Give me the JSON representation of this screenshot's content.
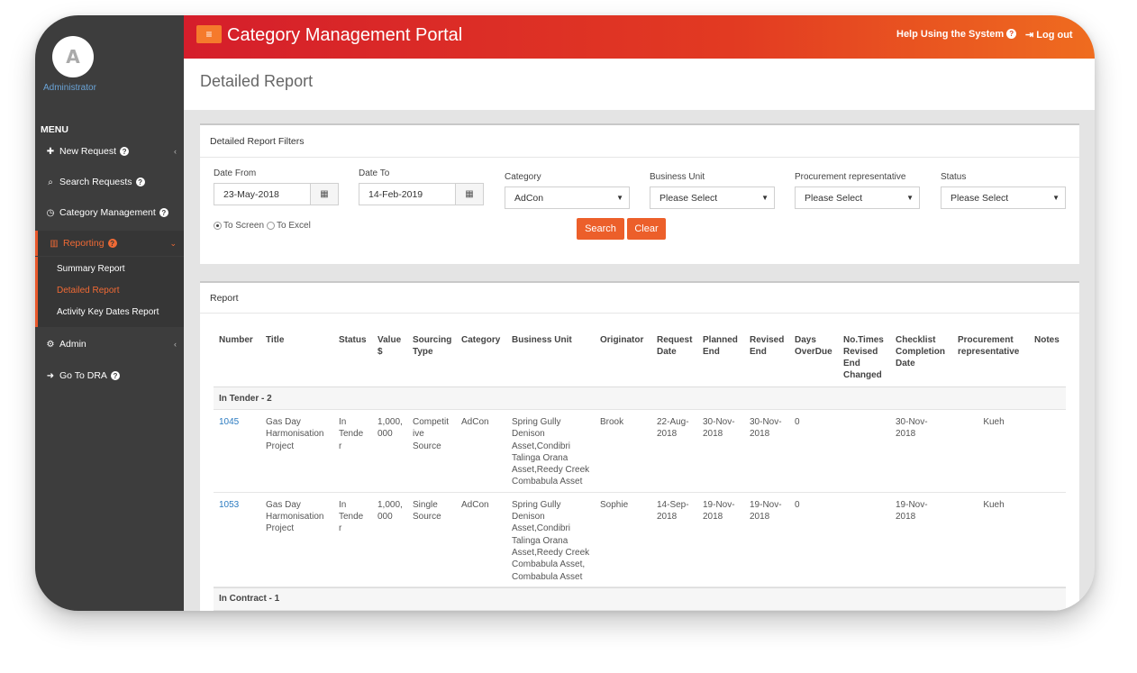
{
  "user": {
    "initial": "A",
    "name": "Administrator"
  },
  "sidebar": {
    "menu_heading": "MENU",
    "items": [
      {
        "label": "New Request",
        "icon": "plus-icon"
      },
      {
        "label": "Search Requests",
        "icon": "search-icon"
      },
      {
        "label": "Category Management",
        "icon": "clock-icon"
      },
      {
        "label": "Reporting",
        "icon": "bar-chart-icon"
      },
      {
        "label": "Admin",
        "icon": "gears-icon"
      },
      {
        "label": "Go To DRA",
        "icon": "arrow-circle-icon"
      }
    ],
    "reporting_sub": [
      "Summary Report",
      "Detailed Report",
      "Activity Key Dates Report"
    ]
  },
  "header": {
    "title": "Category Management Portal",
    "help": "Help Using the System",
    "logout": "Log out"
  },
  "page": {
    "title": "Detailed Report"
  },
  "filters": {
    "title": "Detailed Report Filters",
    "date_from": {
      "label": "Date From",
      "value": "23-May-2018"
    },
    "date_to": {
      "label": "Date To",
      "value": "14-Feb-2019"
    },
    "category": {
      "label": "Category",
      "value": "AdCon"
    },
    "business_unit": {
      "label": "Business Unit",
      "value": "Please Select"
    },
    "procurement_rep": {
      "label": "Procurement representative",
      "value": "Please Select"
    },
    "status": {
      "label": "Status",
      "value": "Please Select"
    },
    "output": {
      "to_screen": "To Screen",
      "to_excel": "To Excel",
      "selected": "to_screen"
    },
    "search_label": "Search",
    "clear_label": "Clear"
  },
  "report": {
    "title": "Report",
    "columns": [
      [
        "Number"
      ],
      [
        "Title"
      ],
      [
        "Status"
      ],
      [
        "Value",
        "$"
      ],
      [
        "Sourcing",
        "Type"
      ],
      [
        "Category"
      ],
      [
        "Business Unit"
      ],
      [
        "Originator"
      ],
      [
        "Request",
        "Date"
      ],
      [
        "Planned",
        "End"
      ],
      [
        "Revised",
        "End"
      ],
      [
        "Days",
        "OverDue"
      ],
      [
        "No.Times",
        "Revised",
        "End",
        "Changed"
      ],
      [
        "Checklist",
        "Completion",
        "Date"
      ],
      [
        "Procurement",
        "representative"
      ],
      [
        "Notes"
      ]
    ],
    "groups": [
      {
        "label": "In Tender - 2",
        "rows": [
          {
            "number": "1045",
            "title": [
              "Gas Day",
              "Harmonisation",
              "Project"
            ],
            "status": [
              "In",
              "Tende",
              "r"
            ],
            "value": [
              "1,000,",
              "000"
            ],
            "sourcing": [
              "Competit",
              "ive",
              "Source"
            ],
            "category": "AdCon",
            "business_unit": [
              "Spring Gully",
              "Denison",
              "Asset,Condibri",
              "Talinga Orana",
              "Asset,Reedy Creek",
              "Combabula Asset"
            ],
            "originator": "Brook",
            "request_date": [
              "22-Aug-",
              "2018"
            ],
            "planned_end": [
              "30-Nov-",
              "2018"
            ],
            "revised_end": [
              "30-Nov-",
              "2018"
            ],
            "days_overdue": "0",
            "times_revised": "",
            "checklist_date": [
              "30-Nov-",
              "2018"
            ],
            "procurement_rep": "Kueh",
            "notes": ""
          },
          {
            "number": "1053",
            "title": [
              "Gas Day",
              "Harmonisation",
              "Project"
            ],
            "status": [
              "In",
              "Tende",
              "r"
            ],
            "value": [
              "1,000,",
              "000"
            ],
            "sourcing": [
              "Single",
              "Source"
            ],
            "category": "AdCon",
            "business_unit": [
              "Spring Gully",
              "Denison",
              "Asset,Condibri",
              "Talinga Orana",
              "Asset,Reedy Creek",
              "Combabula Asset,",
              "Combabula Asset"
            ],
            "originator": "Sophie",
            "request_date": [
              "14-Sep-",
              "2018"
            ],
            "planned_end": [
              "19-Nov-",
              "2018"
            ],
            "revised_end": [
              "19-Nov-",
              "2018"
            ],
            "days_overdue": "0",
            "times_revised": "",
            "checklist_date": [
              "19-Nov-",
              "2018"
            ],
            "procurement_rep": "Kueh",
            "notes": ""
          }
        ]
      },
      {
        "label": "In Contract - 1",
        "rows": []
      }
    ]
  }
}
